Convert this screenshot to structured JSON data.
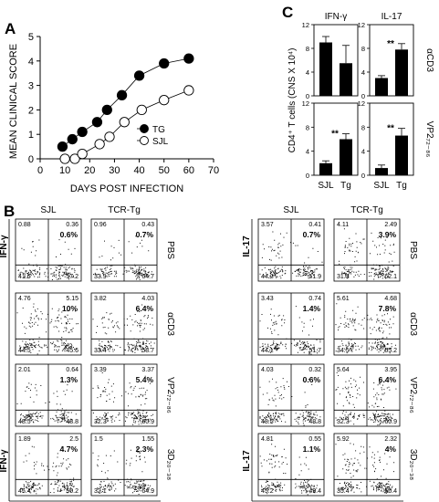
{
  "panels": {
    "A": "A",
    "B": "B",
    "C": "C"
  },
  "chart_a": {
    "ylabel": "MEAN CLINICAL SCORE",
    "xlabel": "DAYS POST INFECTION",
    "x_ticks": [
      "0",
      "10",
      "20",
      "30",
      "40",
      "50",
      "60",
      "70"
    ],
    "y_ticks": [
      "0",
      "1",
      "2",
      "3",
      "4",
      "5"
    ],
    "legend": [
      "TG",
      "SJL"
    ]
  },
  "chart_c": {
    "ylabel": "CD4⁺ T cells (CNS X 10⁴)",
    "col_titles": [
      "IFN-γ",
      "IL-17"
    ],
    "row_labels": [
      "αCD3",
      "VP2₇₂₋₈₆"
    ],
    "y_ticks": [
      "0",
      "4",
      "8",
      "12"
    ],
    "categories": [
      "SJL",
      "Tg"
    ],
    "sig": "**"
  },
  "chart_data": [
    {
      "type": "line",
      "title": "",
      "xlabel": "DAYS POST INFECTION",
      "ylabel": "MEAN CLINICAL SCORE",
      "xlim": [
        0,
        70
      ],
      "ylim": [
        0,
        5
      ],
      "legend_placement": "right",
      "series": [
        {
          "name": "TG",
          "marker": "filled-circle",
          "x": [
            9,
            13,
            17,
            23,
            27,
            33,
            40,
            50,
            60
          ],
          "y": [
            0.5,
            0.8,
            1.1,
            1.5,
            2.0,
            2.6,
            3.4,
            3.9,
            4.1
          ]
        },
        {
          "name": "SJL",
          "marker": "open-circle",
          "x": [
            10,
            14,
            17,
            24,
            28,
            34,
            41,
            50,
            60
          ],
          "y": [
            0.0,
            0.0,
            0.2,
            0.6,
            0.9,
            1.5,
            2.0,
            2.4,
            2.8
          ]
        }
      ]
    },
    {
      "type": "bar",
      "title": "IFN-γ",
      "row": "αCD3",
      "categories": [
        "SJL",
        "Tg"
      ],
      "values": [
        9,
        5.5
      ],
      "errors": [
        1,
        3
      ],
      "ylim": [
        0,
        12
      ]
    },
    {
      "type": "bar",
      "title": "IL-17",
      "row": "αCD3",
      "categories": [
        "SJL",
        "Tg"
      ],
      "values": [
        3,
        7.8
      ],
      "errors": [
        0.4,
        1
      ],
      "ylim": [
        0,
        12
      ],
      "annotation": "**"
    },
    {
      "type": "bar",
      "title": "IFN-γ",
      "row": "VP2₇₂₋₈₆",
      "categories": [
        "SJL",
        "Tg"
      ],
      "values": [
        2,
        6
      ],
      "errors": [
        0.4,
        0.9
      ],
      "ylim": [
        0,
        12
      ],
      "annotation": "**"
    },
    {
      "type": "bar",
      "title": "IL-17",
      "row": "VP2₇₂₋₈₆",
      "categories": [
        "SJL",
        "Tg"
      ],
      "values": [
        1.2,
        6.6
      ],
      "errors": [
        0.5,
        1.2
      ],
      "ylim": [
        0,
        12
      ],
      "annotation": "**"
    }
  ],
  "flow": {
    "left": {
      "cols": [
        "SJL",
        "TCR-Tg"
      ],
      "y_axis": "IFN-γ",
      "x_axis": "CD4",
      "rows": [
        {
          "label": "PBS",
          "plots": [
            {
              "ul": "0.88",
              "ur": "0.36",
              "pct": "0.6%",
              "ll": "41.6",
              "lr": "57.2"
            },
            {
              "ul": "0.96",
              "ur": "0.43",
              "pct": "0.7%",
              "ll": "33.9",
              "lr": "64.7"
            }
          ]
        },
        {
          "label": "αCD3",
          "plots": [
            {
              "ul": "4.76",
              "ur": "5.15",
              "pct": "10%",
              "ll": "44.5",
              "lr": "45.6"
            },
            {
              "ul": "3.82",
              "ur": "4.03",
              "pct": "6.4%",
              "ll": "33.4",
              "lr": "58.7"
            }
          ]
        },
        {
          "label": "VP2₇₂₋₈₆",
          "plots": [
            {
              "ul": "2.01",
              "ur": "0.64",
              "pct": "1.3%",
              "ll": "48.5",
              "lr": "48.8"
            },
            {
              "ul": "3.39",
              "ur": "3.37",
              "pct": "5.4%",
              "ll": "32.3",
              "lr": "60.9"
            }
          ]
        },
        {
          "label": "3D₂₀₋₃₈",
          "plots": [
            {
              "ul": "1.89",
              "ur": "2.5",
              "pct": "4.7%",
              "ll": "45.4",
              "lr": "50.2"
            },
            {
              "ul": "1.5",
              "ur": "1.55",
              "pct": "2.3%",
              "ll": "32.1",
              "lr": "64.9"
            }
          ]
        }
      ]
    },
    "right": {
      "cols": [
        "SJL",
        "TCR-Tg"
      ],
      "y_axis": "IL-17",
      "x_axis": "CD4",
      "rows": [
        {
          "label": "PBS",
          "plots": [
            {
              "ul": "3.57",
              "ur": "0.41",
              "pct": "0.7%",
              "ll": "44.2",
              "lr": "51.9"
            },
            {
              "ul": "4.11",
              "ur": "2.49",
              "pct": "3.9%",
              "ll": "31.3",
              "lr": "62.1"
            }
          ]
        },
        {
          "label": "αCD3",
          "plots": [
            {
              "ul": "3.43",
              "ur": "0.74",
              "pct": "1.4%",
              "ll": "44.1",
              "lr": "51.7"
            },
            {
              "ul": "5.61",
              "ur": "4.68",
              "pct": "7.8%",
              "ll": "34.5",
              "lr": "55.2"
            }
          ]
        },
        {
          "label": "VP2₇₂₋₈₆",
          "plots": [
            {
              "ul": "4.03",
              "ur": "0.32",
              "pct": "0.6%",
              "ll": "48.5",
              "lr": "48.8"
            },
            {
              "ul": "5.64",
              "ur": "3.95",
              "pct": "6.4%",
              "ll": "32.3",
              "lr": "60.9"
            }
          ]
        },
        {
          "label": "3D₂₀₋₃₈",
          "plots": [
            {
              "ul": "4.81",
              "ur": "0.55",
              "pct": "1.1%",
              "ll": "45.2",
              "lr": "49.4"
            },
            {
              "ul": "5.92",
              "ur": "2.32",
              "pct": "4%",
              "ll": "35.4",
              "lr": "56.4"
            }
          ]
        }
      ]
    }
  }
}
